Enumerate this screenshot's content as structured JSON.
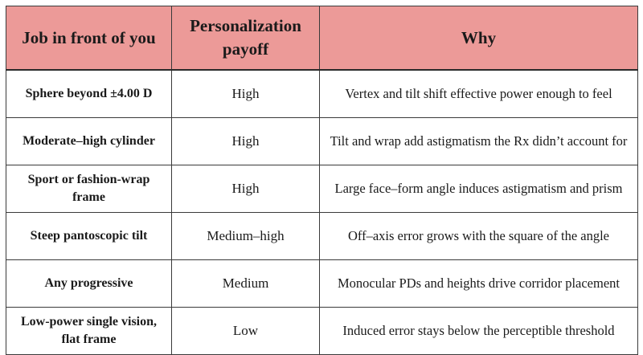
{
  "table": {
    "headers": [
      "Job in front of you",
      "Personalization payoff",
      "Why"
    ],
    "header_bg": "#ec9a98",
    "rows": [
      {
        "job": "Sphere beyond ±4.00 D",
        "payoff": "High",
        "why": "Vertex and tilt shift effective power enough to feel"
      },
      {
        "job": "Moderate–high cylinder",
        "payoff": "High",
        "why": "Tilt and wrap add astigmatism the Rx didn’t account for"
      },
      {
        "job": "Sport or fashion-wrap frame",
        "payoff": "High",
        "why": "Large face–form angle induces astigmatism and prism"
      },
      {
        "job": "Steep pantoscopic tilt",
        "payoff": "Medium–high",
        "why": "Off–axis error grows with the square of the angle"
      },
      {
        "job": "Any progressive",
        "payoff": "Medium",
        "why": "Monocular PDs and heights drive corridor placement"
      },
      {
        "job": "Low-power single vision, flat frame",
        "payoff": "Low",
        "why": "Induced error stays below the perceptible threshold"
      }
    ]
  }
}
